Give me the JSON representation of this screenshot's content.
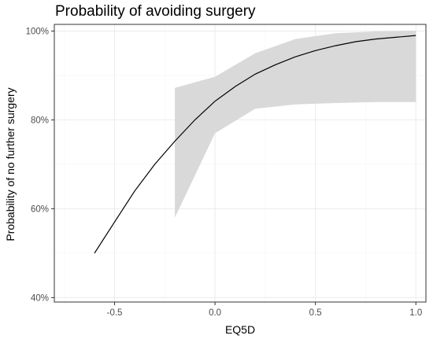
{
  "chart_data": {
    "type": "line",
    "title": "Probability of avoiding surgery",
    "xlabel": "EQ5D",
    "ylabel": "Probability of no further surgery",
    "xlim": [
      -0.8,
      1.05
    ],
    "ylim": [
      0.39,
      1.015
    ],
    "x_ticks": [
      -0.5,
      0.0,
      0.5,
      1.0
    ],
    "x_tick_labels": [
      "-0.5",
      "0.0",
      "0.5",
      "1.0"
    ],
    "y_ticks": [
      0.4,
      0.6,
      0.8,
      1.0
    ],
    "y_tick_labels": [
      "40%",
      "60%",
      "80%",
      "100%"
    ],
    "grid": true,
    "legend": "none",
    "series": [
      {
        "x": [
          -0.6,
          -0.5,
          -0.4,
          -0.3,
          -0.2,
          -0.1,
          0.0,
          0.1,
          0.2,
          0.3,
          0.4,
          0.5,
          0.6,
          0.7,
          0.8,
          0.9,
          1.0
        ],
        "y": [
          0.5,
          0.57,
          0.64,
          0.7,
          0.752,
          0.8,
          0.842,
          0.875,
          0.903,
          0.924,
          0.942,
          0.956,
          0.967,
          0.976,
          0.982,
          0.986,
          0.99
        ]
      }
    ],
    "confidence_band": {
      "x": [
        -0.2,
        0.0,
        0.2,
        0.4,
        0.6,
        0.8,
        1.0
      ],
      "lower": [
        0.58,
        0.77,
        0.825,
        0.835,
        0.838,
        0.84,
        0.84
      ],
      "upper": [
        0.872,
        0.897,
        0.95,
        0.982,
        0.995,
        0.999,
        1.001
      ]
    },
    "colors": {
      "line": "#000000",
      "band": "#d9d9d9",
      "panel_border": "#333333",
      "grid_major": "#ebebeb",
      "grid_minor": "#f5f5f5"
    }
  }
}
